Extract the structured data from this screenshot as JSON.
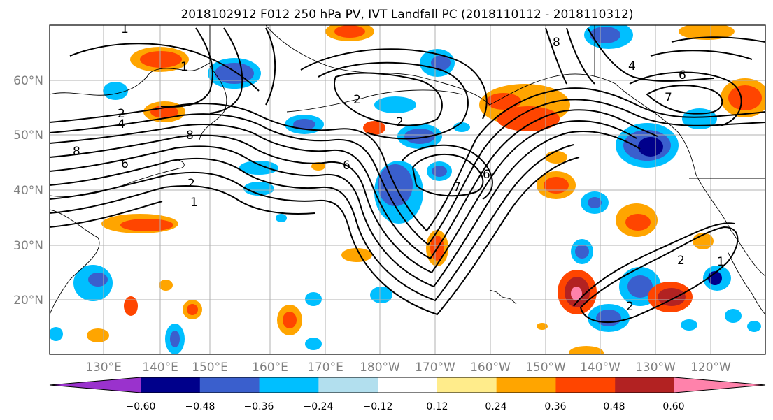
{
  "title": "2018102912 F012 250 hPa PV, IVT Landfall PC (2018110112 - 2018110312)",
  "lat_labels": [
    "60°N",
    "50°N",
    "40°N",
    "30°N",
    "20°N"
  ],
  "lon_labels": [
    "130°E",
    "140°E",
    "150°E",
    "160°E",
    "170°E",
    "180°W",
    "170°W",
    "160°W",
    "150°W",
    "140°W",
    "130°W",
    "120°W"
  ],
  "colorbar": {
    "ticks": [
      "−0.60",
      "−0.48",
      "−0.36",
      "−0.24",
      "−0.12",
      "0.12",
      "0.24",
      "0.36",
      "0.48",
      "0.60"
    ],
    "colors": [
      "#9a32cd",
      "#00008b",
      "#3a5fcd",
      "#00bfff",
      "#b2dfee",
      "#ffffff",
      "#ffec8b",
      "#ffa500",
      "#ff4500",
      "#b22222",
      "#ff82ab"
    ]
  },
  "contour_labels": [
    "1",
    "1",
    "2",
    "4",
    "8",
    "6",
    "8",
    "1",
    "2",
    "6",
    "7",
    "6",
    "2",
    "8",
    "7",
    "4",
    "6",
    "2",
    "1",
    "2",
    "2"
  ]
}
